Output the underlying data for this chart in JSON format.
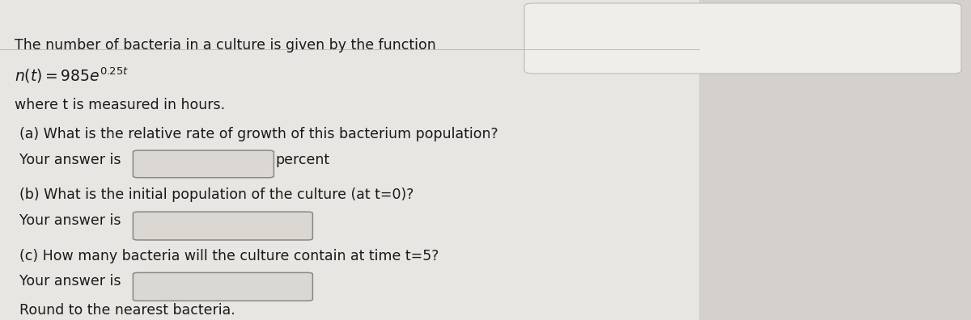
{
  "bg_color": "#d4d0cc",
  "content_bg": "#e8e6e2",
  "text_color": "#1a1a1a",
  "line1": "The number of bacteria in a culture is given by the function",
  "line3": "where t is measured in hours.",
  "qa_label": "(a) What is the relative rate of growth of this bacterium population?",
  "qa_answer": "Your answer is",
  "qa_suffix": "percent",
  "qb_label": "(b) What is the initial population of the culture (at t=0)?",
  "qb_answer": "Your answer is",
  "qc_label": "(c) How many bacteria will the culture contain at time t=5?",
  "qc_answer": "Your answer is",
  "qc_note": "Round to the nearest bacteria.",
  "box_fill": "#dbd8d3",
  "box_edge": "#888888",
  "top_panel_color": "#f0eeeb",
  "font_size": 12.5
}
